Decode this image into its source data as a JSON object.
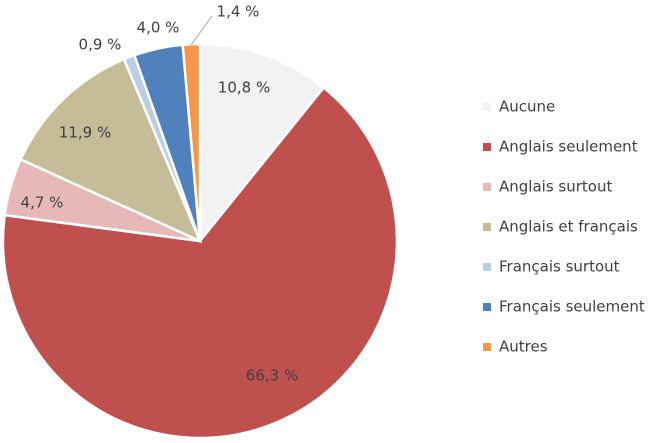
{
  "chart_data": {
    "type": "pie",
    "categories": [
      "Aucune",
      "Anglais seulement",
      "Anglais surtout",
      "Anglais et français",
      "Français surtout",
      "Français seulement",
      "Autres"
    ],
    "values": [
      10.8,
      66.3,
      4.7,
      11.9,
      0.9,
      4.0,
      1.4
    ],
    "value_labels": [
      "10,8 %",
      "66,3 %",
      "4,7 %",
      "11,9 %",
      "0,9 %",
      "4,0 %",
      "1,4 %"
    ],
    "colors": [
      "#f2f2f2",
      "#c0504d",
      "#e6b9b8",
      "#c4bd97",
      "#b9cde5",
      "#4f81bd",
      "#f79646"
    ],
    "legend": "right"
  }
}
